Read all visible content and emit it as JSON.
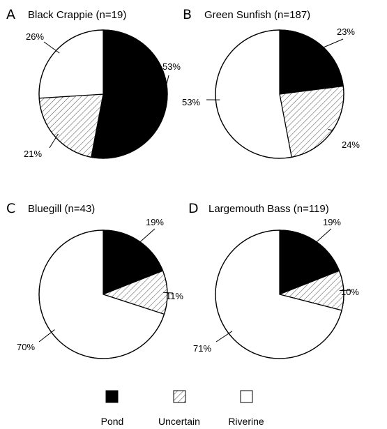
{
  "chart_data": [
    {
      "type": "pie",
      "letter": "A",
      "title": "Black Crappie (n=19)",
      "slices": [
        {
          "category": "Pond",
          "value": 53,
          "label": "53%"
        },
        {
          "category": "Uncertain",
          "value": 21,
          "label": "21%"
        },
        {
          "category": "Riverine",
          "value": 26,
          "label": "26%"
        }
      ]
    },
    {
      "type": "pie",
      "letter": "B",
      "title": "Green Sunfish (n=187)",
      "slices": [
        {
          "category": "Pond",
          "value": 23,
          "label": "23%"
        },
        {
          "category": "Uncertain",
          "value": 24,
          "label": "24%"
        },
        {
          "category": "Riverine",
          "value": 53,
          "label": "53%"
        }
      ]
    },
    {
      "type": "pie",
      "letter": "C",
      "title": "Bluegill (n=43)",
      "slices": [
        {
          "category": "Pond",
          "value": 19,
          "label": "19%"
        },
        {
          "category": "Uncertain",
          "value": 11,
          "label": "11%"
        },
        {
          "category": "Riverine",
          "value": 70,
          "label": "70%"
        }
      ]
    },
    {
      "type": "pie",
      "letter": "D",
      "title": "Largemouth Bass (n=119)",
      "slices": [
        {
          "category": "Pond",
          "value": 19,
          "label": "19%"
        },
        {
          "category": "Uncertain",
          "value": 10,
          "label": "10%"
        },
        {
          "category": "Riverine",
          "value": 71,
          "label": "71%"
        }
      ]
    }
  ],
  "legend": {
    "placement": "bottom",
    "items": [
      {
        "label": "Pond",
        "fill": "solid black"
      },
      {
        "label": "Uncertain",
        "fill": "diagonal hatch"
      },
      {
        "label": "Riverine",
        "fill": "white"
      }
    ]
  },
  "colors": {
    "pond": "#000000",
    "uncertain_hatch": "#555555",
    "riverine": "#ffffff",
    "outline": "#000000"
  }
}
